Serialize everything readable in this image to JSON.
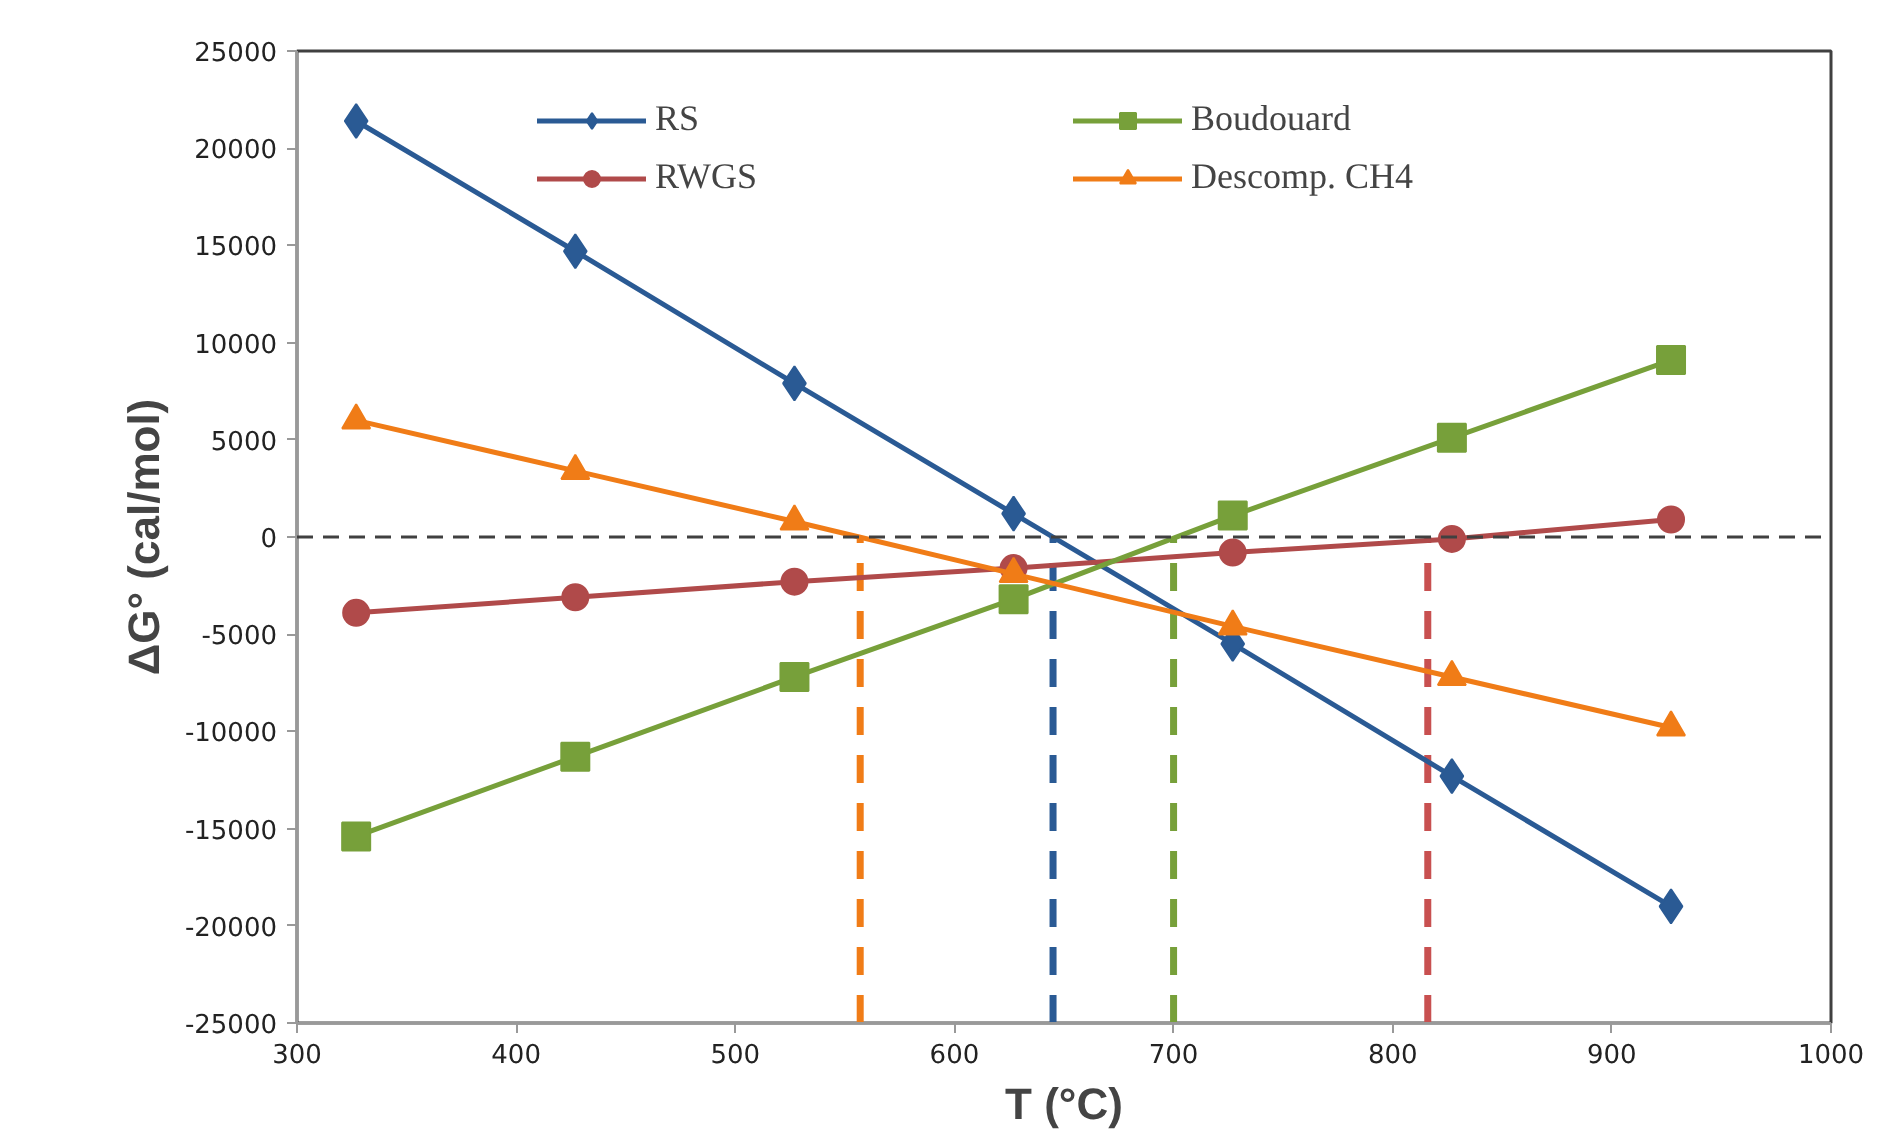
{
  "chart_data": {
    "type": "line",
    "xlabel": "T (°C)",
    "ylabel": "ΔG° (cal/mol)",
    "x": [
      327,
      427,
      527,
      627,
      727,
      827,
      927
    ],
    "xlim": [
      300,
      1000
    ],
    "xticks": [
      300,
      400,
      500,
      600,
      700,
      800,
      900,
      1000
    ],
    "ylim": [
      -25000,
      25000
    ],
    "yticks": [
      -25000,
      -20000,
      -15000,
      -10000,
      -5000,
      0,
      5000,
      10000,
      15000,
      20000,
      25000
    ],
    "grid": false,
    "legend": "top",
    "line_style": "solid",
    "series": [
      {
        "name": "RS",
        "color": "#2a5a94",
        "marker": "diamond",
        "values": [
          21400,
          14700,
          7900,
          1200,
          -5500,
          -12300,
          -19000
        ]
      },
      {
        "name": "RWGS",
        "color": "#b04a4a",
        "marker": "circle",
        "values": [
          -3900,
          -3100,
          -2300,
          -1600,
          -800,
          -100,
          900
        ]
      },
      {
        "name": "Boudouard",
        "color": "#77a03a",
        "marker": "square",
        "values": [
          -15400,
          -11300,
          -7200,
          -3200,
          1100,
          5100,
          9100
        ]
      },
      {
        "name": "Descomp. CH4",
        "color": "#f07c17",
        "marker": "triangle",
        "values": [
          6000,
          3400,
          800,
          -1900,
          -4600,
          -7200,
          -9800
        ]
      }
    ],
    "ref_lines": [
      {
        "axis": "y",
        "value": 0,
        "color": "#404040",
        "line_style": "dashed"
      },
      {
        "axis": "x",
        "value": 557,
        "color": "#f07c17",
        "line_style": "dashed"
      },
      {
        "axis": "x",
        "value": 645,
        "color": "#2a5a94",
        "line_style": "dashed"
      },
      {
        "axis": "x",
        "value": 700,
        "color": "#77a03a",
        "line_style": "dashed"
      },
      {
        "axis": "x",
        "value": 816,
        "color": "#c85050",
        "line_style": "dashed"
      }
    ]
  }
}
